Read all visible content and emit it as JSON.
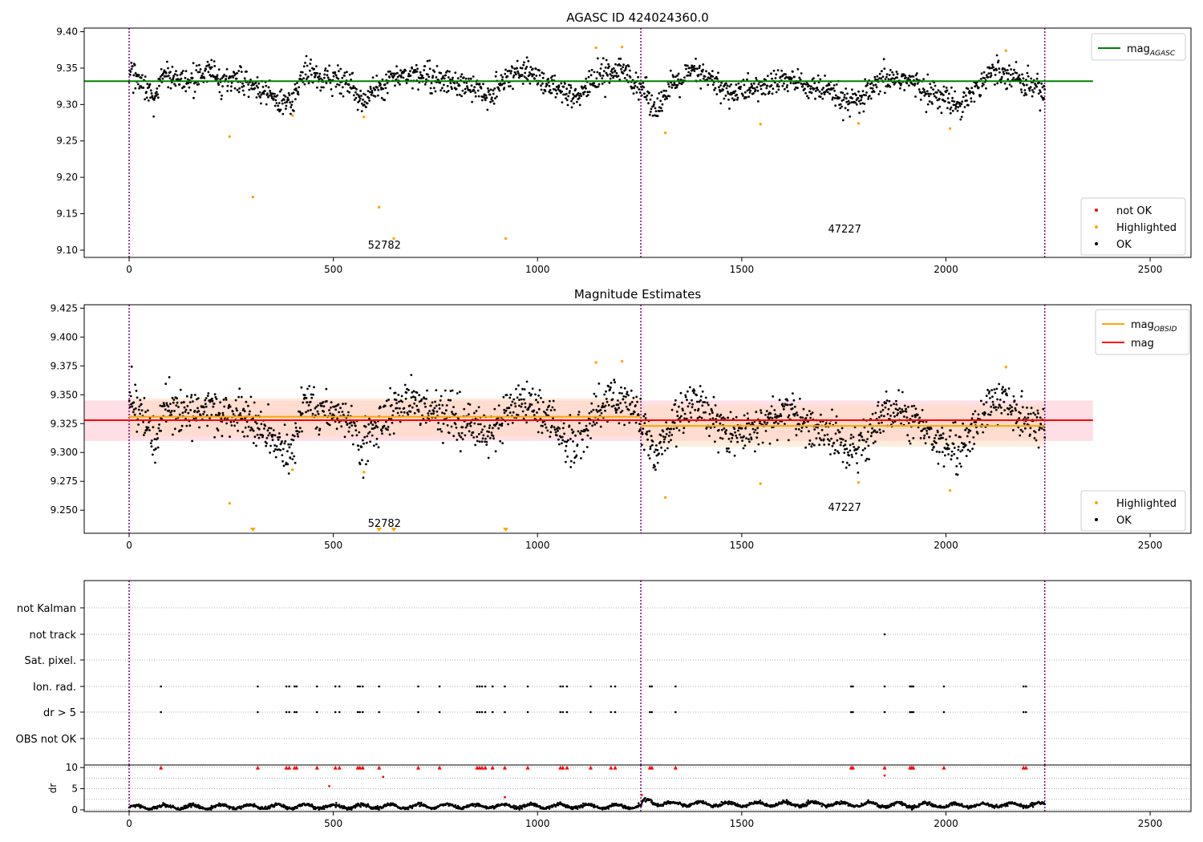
{
  "figure_title": "AGASC ID 424024360.0",
  "colors": {
    "ok": "#000000",
    "highlighted": "#ffa500",
    "not_ok": "#ff0000",
    "agasc_line": "#008000",
    "obsid_line": "#ffa500",
    "mag_line": "#ff0000",
    "obs_boundary": "#800080",
    "obsid_band": "#ffdab9",
    "mag_band": "#ffc0cb"
  },
  "chart_data": [
    {
      "type": "scatter",
      "title": "",
      "xlim": [
        -110,
        2600
      ],
      "ylim": [
        9.09,
        9.405
      ],
      "x_ticks": [
        0,
        500,
        1000,
        1500,
        2000,
        2500
      ],
      "y_ticks": [
        9.1,
        9.15,
        9.2,
        9.25,
        9.3,
        9.35,
        9.4
      ],
      "y_tick_labels": [
        "9.10",
        "9.15",
        "9.20",
        "9.25",
        "9.30",
        "9.35",
        "9.40"
      ],
      "obs_boundaries": [
        0,
        1253,
        2242
      ],
      "obsid_labels": [
        {
          "text": "52782",
          "x": 625,
          "y": 9.102
        },
        {
          "text": "47227",
          "x": 1752,
          "y": 9.124
        }
      ],
      "horizontal_lines": [
        {
          "name": "mag_AGASC",
          "y": 9.332,
          "x_range": [
            -110,
            2360
          ],
          "color": "#008000"
        }
      ],
      "legend_lines": [
        {
          "label": "mag",
          "sub": "AGASC",
          "color": "#008000"
        }
      ],
      "legend_points": [
        {
          "label": "not OK",
          "color": "#ff0000"
        },
        {
          "label": "Highlighted",
          "color": "#ffa500"
        },
        {
          "label": "OK",
          "color": "#000000"
        }
      ],
      "highlighted_points": [
        [
          246,
          9.256
        ],
        [
          303,
          9.173
        ],
        [
          400,
          9.285
        ],
        [
          575,
          9.283
        ],
        [
          612,
          9.159
        ],
        [
          648,
          9.116
        ],
        [
          922,
          9.116
        ],
        [
          1143,
          9.378
        ],
        [
          1207,
          9.379
        ],
        [
          1313,
          9.261
        ],
        [
          1546,
          9.273
        ],
        [
          1786,
          9.274
        ],
        [
          2010,
          9.267
        ],
        [
          2147,
          9.374
        ]
      ],
      "ok_series": {
        "n_points": 1800,
        "x_range": [
          0,
          2242
        ],
        "spread": 0.012,
        "trend_knots": [
          [
            0,
            9.345
          ],
          [
            30,
            9.335
          ],
          [
            60,
            9.305
          ],
          [
            90,
            9.34
          ],
          [
            140,
            9.33
          ],
          [
            190,
            9.345
          ],
          [
            230,
            9.33
          ],
          [
            275,
            9.335
          ],
          [
            300,
            9.325
          ],
          [
            340,
            9.315
          ],
          [
            370,
            9.305
          ],
          [
            395,
            9.3
          ],
          [
            430,
            9.345
          ],
          [
            470,
            9.335
          ],
          [
            510,
            9.335
          ],
          [
            545,
            9.33
          ],
          [
            565,
            9.3
          ],
          [
            600,
            9.32
          ],
          [
            640,
            9.335
          ],
          [
            690,
            9.345
          ],
          [
            740,
            9.335
          ],
          [
            790,
            9.33
          ],
          [
            840,
            9.325
          ],
          [
            880,
            9.312
          ],
          [
            920,
            9.335
          ],
          [
            970,
            9.348
          ],
          [
            1010,
            9.335
          ],
          [
            1050,
            9.318
          ],
          [
            1090,
            9.305
          ],
          [
            1130,
            9.33
          ],
          [
            1170,
            9.345
          ],
          [
            1215,
            9.345
          ],
          [
            1253,
            9.325
          ],
          [
            1290,
            9.295
          ],
          [
            1330,
            9.325
          ],
          [
            1380,
            9.345
          ],
          [
            1420,
            9.335
          ],
          [
            1470,
            9.315
          ],
          [
            1510,
            9.32
          ],
          [
            1560,
            9.325
          ],
          [
            1610,
            9.335
          ],
          [
            1660,
            9.325
          ],
          [
            1720,
            9.315
          ],
          [
            1765,
            9.3
          ],
          [
            1800,
            9.31
          ],
          [
            1850,
            9.335
          ],
          [
            1900,
            9.335
          ],
          [
            1950,
            9.32
          ],
          [
            1990,
            9.31
          ],
          [
            2030,
            9.3
          ],
          [
            2070,
            9.32
          ],
          [
            2110,
            9.345
          ],
          [
            2150,
            9.345
          ],
          [
            2190,
            9.33
          ],
          [
            2242,
            9.32
          ]
        ]
      }
    },
    {
      "type": "scatter",
      "title": "Magnitude Estimates",
      "xlim": [
        -110,
        2600
      ],
      "ylim": [
        9.23,
        9.428
      ],
      "x_ticks": [
        0,
        500,
        1000,
        1500,
        2000,
        2500
      ],
      "y_ticks": [
        9.25,
        9.275,
        9.3,
        9.325,
        9.35,
        9.375,
        9.4,
        9.425
      ],
      "y_tick_labels": [
        "9.250",
        "9.275",
        "9.300",
        "9.325",
        "9.350",
        "9.375",
        "9.400",
        "9.425"
      ],
      "obs_boundaries": [
        0,
        1253,
        2242
      ],
      "obsid_labels": [
        {
          "text": "52782",
          "x": 625,
          "y": 9.2355
        },
        {
          "text": "47227",
          "x": 1752,
          "y": 9.2495
        }
      ],
      "bands": [
        {
          "x_range": [
            -110,
            2360
          ],
          "y_range": [
            9.31,
            9.345
          ],
          "color": "#ffc0cb"
        },
        {
          "x_range": [
            0,
            1253
          ],
          "y_range": [
            9.314,
            9.347
          ],
          "color": "#ffdab9"
        },
        {
          "x_range": [
            1253,
            2242
          ],
          "y_range": [
            9.305,
            9.341
          ],
          "color": "#ffdab9"
        }
      ],
      "horizontal_lines": [
        {
          "name": "mag",
          "y": 9.328,
          "x_range": [
            -110,
            2360
          ],
          "color": "#ff0000"
        },
        {
          "name": "mag_OBSID_1",
          "y": 9.331,
          "x_range": [
            0,
            1253
          ],
          "color": "#ffa500"
        },
        {
          "name": "mag_OBSID_2",
          "y": 9.323,
          "x_range": [
            1253,
            2242
          ],
          "color": "#ffa500"
        }
      ],
      "legend_lines": [
        {
          "label": "mag",
          "sub": "OBSID",
          "color": "#ffa500"
        },
        {
          "label": "mag",
          "sub": "",
          "color": "#ff0000"
        }
      ],
      "legend_points": [
        {
          "label": "Highlighted",
          "color": "#ffa500"
        },
        {
          "label": "OK",
          "color": "#000000"
        }
      ],
      "highlighted_points": [
        [
          246,
          9.256
        ],
        [
          400,
          9.285
        ],
        [
          575,
          9.283
        ],
        [
          1143,
          9.378
        ],
        [
          1207,
          9.379
        ],
        [
          1313,
          9.261
        ],
        [
          1546,
          9.273
        ],
        [
          1786,
          9.274
        ],
        [
          2010,
          9.267
        ],
        [
          2147,
          9.374
        ]
      ],
      "offscale_markers_x": [
        303,
        612,
        648,
        922
      ],
      "ok_series": {
        "n_points": 1800,
        "x_range": [
          0,
          2242
        ],
        "spread": 0.012,
        "trend_knots": [
          [
            0,
            9.345
          ],
          [
            30,
            9.335
          ],
          [
            60,
            9.305
          ],
          [
            90,
            9.34
          ],
          [
            140,
            9.33
          ],
          [
            190,
            9.345
          ],
          [
            230,
            9.33
          ],
          [
            275,
            9.335
          ],
          [
            300,
            9.325
          ],
          [
            340,
            9.315
          ],
          [
            370,
            9.305
          ],
          [
            395,
            9.3
          ],
          [
            430,
            9.345
          ],
          [
            470,
            9.335
          ],
          [
            510,
            9.335
          ],
          [
            545,
            9.33
          ],
          [
            565,
            9.3
          ],
          [
            600,
            9.32
          ],
          [
            640,
            9.335
          ],
          [
            690,
            9.345
          ],
          [
            740,
            9.335
          ],
          [
            790,
            9.33
          ],
          [
            840,
            9.325
          ],
          [
            880,
            9.312
          ],
          [
            920,
            9.335
          ],
          [
            970,
            9.348
          ],
          [
            1010,
            9.335
          ],
          [
            1050,
            9.318
          ],
          [
            1090,
            9.305
          ],
          [
            1130,
            9.33
          ],
          [
            1170,
            9.345
          ],
          [
            1215,
            9.345
          ],
          [
            1253,
            9.325
          ],
          [
            1290,
            9.295
          ],
          [
            1330,
            9.325
          ],
          [
            1380,
            9.345
          ],
          [
            1420,
            9.335
          ],
          [
            1470,
            9.315
          ],
          [
            1510,
            9.32
          ],
          [
            1560,
            9.325
          ],
          [
            1610,
            9.335
          ],
          [
            1660,
            9.325
          ],
          [
            1720,
            9.315
          ],
          [
            1765,
            9.3
          ],
          [
            1800,
            9.31
          ],
          [
            1850,
            9.335
          ],
          [
            1900,
            9.335
          ],
          [
            1950,
            9.32
          ],
          [
            1990,
            9.31
          ],
          [
            2030,
            9.3
          ],
          [
            2070,
            9.32
          ],
          [
            2110,
            9.345
          ],
          [
            2150,
            9.345
          ],
          [
            2190,
            9.33
          ],
          [
            2242,
            9.32
          ]
        ]
      }
    },
    {
      "type": "scatter",
      "title": "",
      "xlim": [
        -110,
        2600
      ],
      "categories": [
        "not Kalman",
        "not track",
        "Sat. pixel.",
        "Ion. rad.",
        "dr > 5",
        "OBS not OK"
      ],
      "obs_boundaries": [
        0,
        1253,
        2242
      ],
      "flag_events": {
        "not track": [
          1850
        ],
        "Ion. rad.": [
          78,
          315,
          385,
          392,
          405,
          410,
          460,
          505,
          515,
          560,
          565,
          572,
          612,
          708,
          760,
          852,
          858,
          864,
          872,
          890,
          920,
          976,
          1056,
          1062,
          1072,
          1130,
          1180,
          1190,
          1275,
          1280,
          1338,
          1768,
          1772,
          1850,
          1912,
          1916,
          1920,
          1995,
          2190,
          2196
        ],
        "dr > 5": [
          78,
          315,
          385,
          392,
          405,
          410,
          460,
          505,
          515,
          560,
          565,
          572,
          612,
          708,
          760,
          852,
          858,
          864,
          872,
          890,
          920,
          976,
          1056,
          1062,
          1072,
          1130,
          1180,
          1190,
          1275,
          1280,
          1338,
          1768,
          1772,
          1850,
          1912,
          1916,
          1920,
          1995,
          2190,
          2196
        ]
      }
    },
    {
      "type": "scatter",
      "title": "",
      "xlim": [
        -110,
        2600
      ],
      "ylim": [
        -0.4,
        10.6
      ],
      "y_ticks": [
        0,
        5,
        10
      ],
      "y_tick_labels": [
        "0",
        "5",
        "10"
      ],
      "x_ticks": [
        0,
        500,
        1000,
        1500,
        2000,
        2500
      ],
      "ylabel": "dr",
      "obs_boundaries": [
        0,
        1253,
        2242
      ],
      "clipped_markers_x": [
        78,
        315,
        385,
        392,
        405,
        410,
        460,
        505,
        515,
        560,
        565,
        572,
        612,
        708,
        760,
        852,
        858,
        864,
        872,
        890,
        920,
        976,
        1056,
        1062,
        1072,
        1130,
        1180,
        1190,
        1275,
        1280,
        1338,
        1768,
        1772,
        1850,
        1912,
        1916,
        1920,
        1995,
        2190,
        2196
      ],
      "not_ok_points": [
        [
          490,
          5.6
        ],
        [
          622,
          7.8
        ],
        [
          920,
          3.0
        ],
        [
          1850,
          8.1
        ],
        [
          1255,
          3.5
        ]
      ],
      "dr_series": {
        "n_points": 1800,
        "x_range": [
          0,
          2242
        ],
        "base_knots": [
          [
            0,
            0.6
          ],
          [
            300,
            0.8
          ],
          [
            600,
            0.8
          ],
          [
            900,
            0.9
          ],
          [
            1253,
            0.8
          ],
          [
            1260,
            2.2
          ],
          [
            1300,
            1.5
          ],
          [
            1500,
            1.3
          ],
          [
            1700,
            1.4
          ],
          [
            2000,
            1.0
          ],
          [
            2242,
            1.2
          ]
        ],
        "spread": 0.5
      }
    }
  ]
}
